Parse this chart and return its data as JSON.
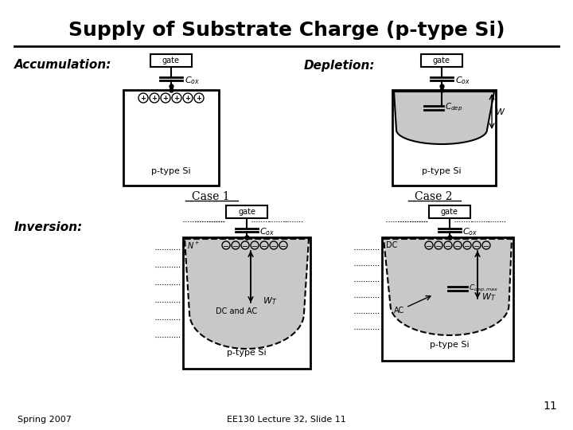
{
  "title": "Supply of Substrate Charge (p-type Si)",
  "bg_color": "#ffffff",
  "title_fontsize": 18,
  "slide_number": "11",
  "footer_left": "Spring 2007",
  "footer_center": "EE130 Lecture 32, Slide 11",
  "accum_label": "Accumulation:",
  "depl_label": "Depletion:",
  "inv_label": "Inversion:",
  "case1_label": "Case 1",
  "case2_label": "Case 2",
  "gate_text": "gate",
  "ptype_text": "p-type Si",
  "cox_text": "$C_{ox}$",
  "cdep_text": "$C_{dep}$",
  "cdepmax_text": "$C_{dep,max}$",
  "W_text": "$W$",
  "WT_text": "$W_T$",
  "DC_AC_text": "DC and AC",
  "DC_text": "DC",
  "AC_text": "AC",
  "Nplus_text": "$N^+$",
  "line_color": "#000000",
  "depl_fill": "#c8c8c8"
}
